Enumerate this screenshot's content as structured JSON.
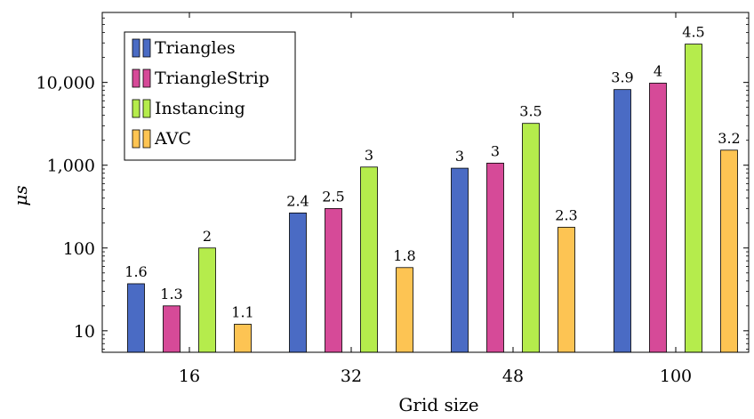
{
  "chart_data": {
    "type": "bar",
    "categories": [
      "16",
      "32",
      "48",
      "100"
    ],
    "series": [
      {
        "name": "Triangles",
        "color": "#4a6bc4",
        "values": [
          37,
          265,
          920,
          8200
        ],
        "labels": [
          "1.6",
          "2.4",
          "3",
          "3.9"
        ]
      },
      {
        "name": "TriangleStrip",
        "color": "#d64a98",
        "values": [
          20,
          300,
          1060,
          9800
        ],
        "labels": [
          "1.3",
          "2.5",
          "3",
          "4"
        ]
      },
      {
        "name": "Instancing",
        "color": "#b5ec4c",
        "values": [
          100,
          950,
          3200,
          29000
        ],
        "labels": [
          "2",
          "3",
          "3.5",
          "4.5"
        ]
      },
      {
        "name": "AVC",
        "color": "#fdc453",
        "values": [
          12,
          58,
          178,
          1520
        ],
        "labels": [
          "1.1",
          "1.8",
          "2.3",
          "3.2"
        ]
      }
    ],
    "xlabel": "Grid size",
    "ylabel": "μs",
    "yscale": "log",
    "ylim": [
      5.5,
      70000
    ],
    "yticks": [
      10,
      100,
      1000,
      10000
    ],
    "ytick_labels": [
      "10",
      "100",
      "1,000",
      "10,000"
    ],
    "legend": "top-left",
    "grid": false
  }
}
